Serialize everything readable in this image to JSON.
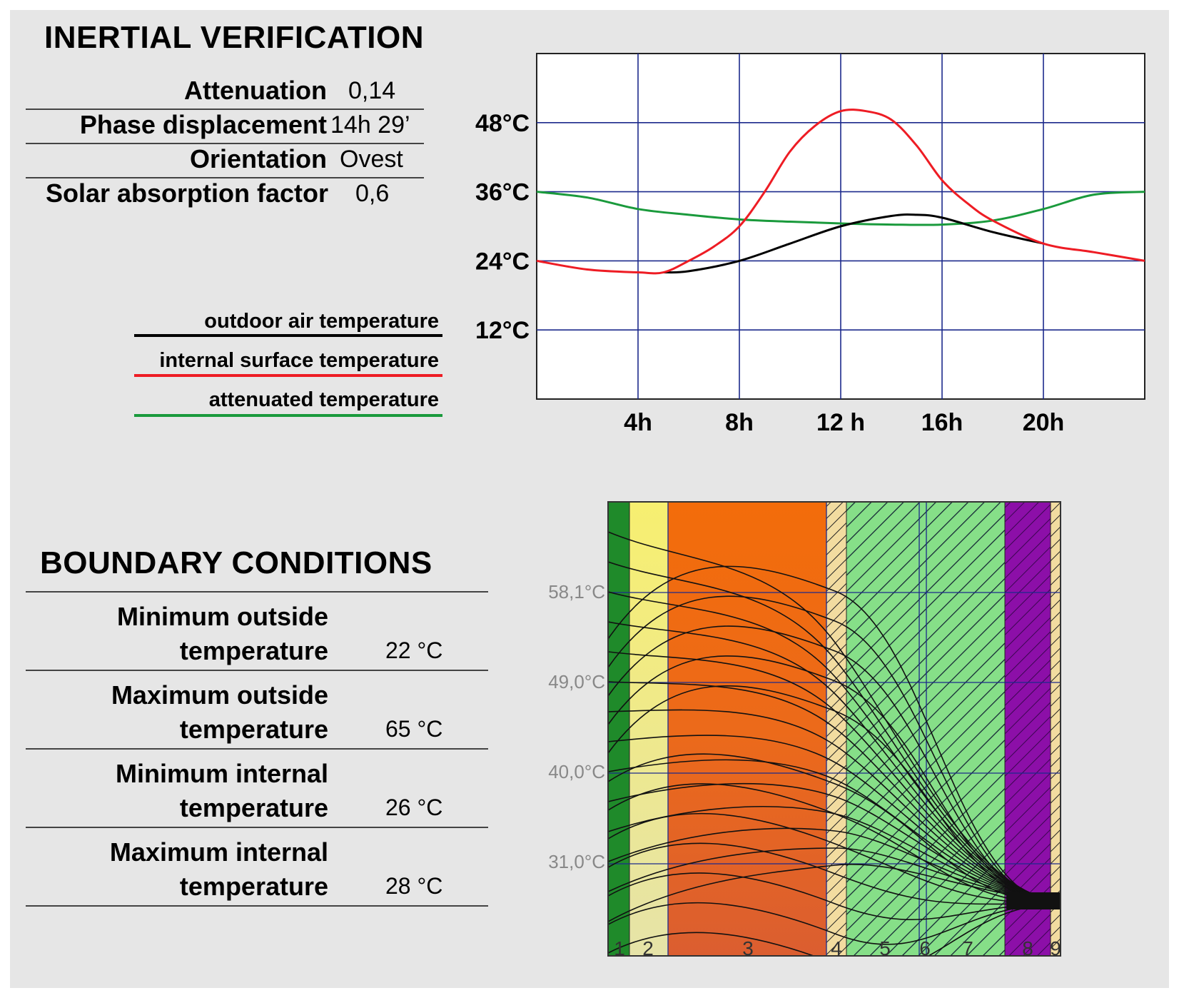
{
  "inertial": {
    "title": "INERTIAL VERIFICATION",
    "rows": [
      {
        "label": "Attenuation",
        "value": "0,14"
      },
      {
        "label": "Phase displacement",
        "value": "14h 29’"
      },
      {
        "label": "Orientation",
        "value": "Ovest"
      },
      {
        "label": "Solar absorption factor",
        "value": "0,6"
      }
    ]
  },
  "legend": [
    {
      "label": "outdoor air temperature",
      "color": "#000000"
    },
    {
      "label": "internal surface temperature",
      "color": "#ee1c24"
    },
    {
      "label": "attenuated temperature",
      "color": "#1a9a3c"
    }
  ],
  "chart_data": {
    "type": "line",
    "title": "",
    "xlabel": "",
    "ylabel": "",
    "xlim": [
      0,
      24
    ],
    "ylim": [
      0,
      60
    ],
    "x_ticks": [
      4,
      8,
      12,
      16,
      20
    ],
    "x_tick_labels": [
      "4h",
      "8h",
      "12 h",
      "16h",
      "20h"
    ],
    "y_ticks": [
      12,
      24,
      36,
      48
    ],
    "y_tick_labels": [
      "12°C",
      "24°C",
      "36°C",
      "48°C"
    ],
    "grid": true,
    "series": [
      {
        "name": "outdoor air temperature",
        "color": "#000000",
        "x": [
          5,
          6,
          8,
          10,
          12,
          14,
          15,
          16,
          18,
          20
        ],
        "y": [
          22,
          22.2,
          24,
          27,
          30,
          31.8,
          32,
          31.5,
          29,
          27
        ]
      },
      {
        "name": "internal surface temperature",
        "color": "#ee1c24",
        "x": [
          0,
          2,
          4,
          5,
          6,
          7,
          8,
          9,
          10,
          11,
          12,
          13,
          14,
          15,
          16,
          17,
          18,
          20,
          22,
          24
        ],
        "y": [
          24,
          22.5,
          22,
          22,
          24,
          26.5,
          30,
          36,
          43,
          47.5,
          50,
          50,
          48.5,
          44,
          38,
          34,
          31,
          27,
          25.5,
          24
        ]
      },
      {
        "name": "attenuated temperature",
        "color": "#1a9a3c",
        "x": [
          0,
          2,
          4,
          6,
          8,
          10,
          12,
          14,
          16,
          18,
          20,
          22,
          24
        ],
        "y": [
          36,
          35,
          33,
          32,
          31.2,
          30.8,
          30.5,
          30.3,
          30.3,
          31,
          33,
          35.5,
          36
        ]
      }
    ]
  },
  "boundary": {
    "title": "BOUNDARY  CONDITIONS",
    "rows": [
      {
        "line1": "Minimum outside",
        "line2": "temperature",
        "value": "22 °C"
      },
      {
        "line1": "Maximum outside",
        "line2": "temperature",
        "value": "65 °C"
      },
      {
        "line1": "Minimum internal",
        "line2": "temperature",
        "value": "26 °C"
      },
      {
        "line1": "Maximum internal",
        "line2": "temperature",
        "value": "28 °C"
      }
    ]
  },
  "wall_diagram": {
    "y_labels": [
      "58,1°C",
      "49,0°C",
      "40,0°C",
      "31,0°C"
    ],
    "layer_labels": [
      "1",
      "2",
      "3",
      "4",
      "5",
      "6",
      "7",
      "8",
      "9"
    ],
    "layer_colors": {
      "layer1": "#1f8a2a",
      "layer2": "#f5ef7a",
      "layer3": "#f07010",
      "layer4": "#f2dca0",
      "layer5": "#88e08a",
      "layer8": "#8a0fa8",
      "layer9": "#f2dca0"
    }
  }
}
